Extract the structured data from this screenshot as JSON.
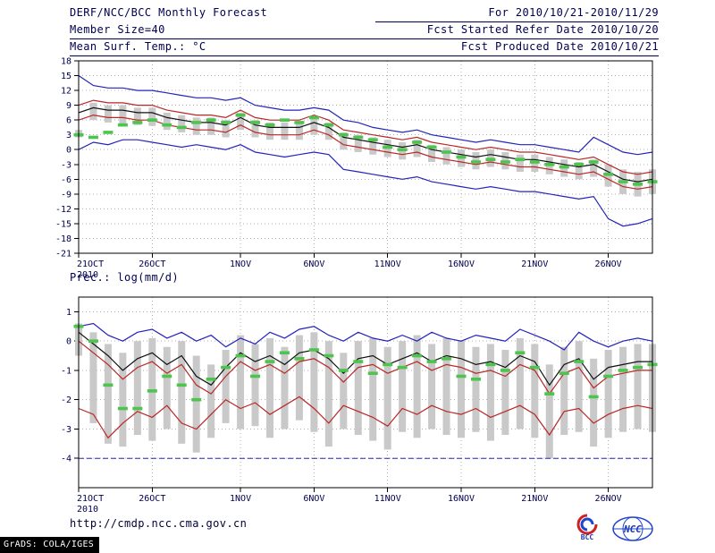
{
  "header": {
    "title": "DERF/NCC/BCC Monthly Forecast",
    "member_size": "Member Size=40",
    "for_range": "For 2010/10/21-2010/11/29",
    "fcst_started": "Fcst Started Refer Date 2010/10/20",
    "fcst_produced": "Fcst Produced Date 2010/10/21"
  },
  "footer": {
    "url": "http://cmdp.ncc.cma.gov.cn",
    "grads_credit": "GrADS: COLA/IGES",
    "logos": [
      {
        "label": "BCC"
      },
      {
        "label": "NCC"
      }
    ]
  },
  "colors": {
    "text": "#000050",
    "grid": "#b0b0b0",
    "frame": "#000000",
    "blue_line": "#2323bb",
    "red_line": "#bb2626",
    "black_line": "#111111",
    "bar_gray": "#c9c9c9",
    "obs_green": "#4dc44d"
  },
  "chart_data": [
    {
      "type": "line",
      "title": "Mean Surf. Temp.: °C",
      "n_days": 40,
      "x_tick_labels": [
        "21OCT",
        "26OCT",
        "1NOV",
        "6NOV",
        "11NOV",
        "16NOV",
        "21NOV",
        "26NOV"
      ],
      "x_tick_day_index": [
        0,
        5,
        11,
        16,
        21,
        26,
        31,
        36
      ],
      "x_year_label": "2010",
      "ylim": [
        -21,
        18
      ],
      "yticks": [
        18,
        15,
        12,
        9,
        6,
        3,
        0,
        -3,
        -6,
        -9,
        -12,
        -15,
        -18,
        -21
      ],
      "grid": "dotted",
      "series": [
        {
          "name": "ensemble-max",
          "color": "#2323bb",
          "values": [
            15,
            13,
            12.5,
            12.5,
            12,
            12,
            11.5,
            11,
            10.5,
            10.5,
            10,
            10.5,
            9,
            8.5,
            8,
            8,
            8.5,
            8,
            6,
            5.5,
            4.5,
            4,
            3.5,
            4,
            3,
            2.5,
            2,
            1.5,
            2,
            1.5,
            1,
            1,
            0.5,
            0,
            -0.5,
            2.5,
            1,
            -0.5,
            -1,
            -0.5
          ]
        },
        {
          "name": "spread-upper",
          "color": "#bb2626",
          "values": [
            9,
            10,
            9.5,
            9.5,
            9,
            9,
            8,
            7.5,
            7,
            7,
            6.5,
            8,
            6.5,
            6,
            6,
            6,
            7,
            6,
            4,
            3.5,
            3,
            2.5,
            2,
            2.5,
            1.5,
            1,
            0.5,
            0,
            0.5,
            0,
            -0.5,
            -0.5,
            -1,
            -1.5,
            -2,
            -1.5,
            -3,
            -4.5,
            -5,
            -4.5
          ]
        },
        {
          "name": "ensemble-mean",
          "color": "#111111",
          "values": [
            7.5,
            8.5,
            8,
            8,
            7.5,
            7.5,
            6.5,
            6,
            5.5,
            5.5,
            5,
            6.5,
            5,
            4.5,
            4.5,
            4.5,
            5.5,
            4.5,
            2.5,
            2,
            1.5,
            1,
            0.5,
            1,
            0,
            -0.5,
            -1,
            -1.5,
            -1,
            -1.5,
            -2,
            -2,
            -2.5,
            -3,
            -3.5,
            -3,
            -4.5,
            -6,
            -6.5,
            -6
          ]
        },
        {
          "name": "spread-lower",
          "color": "#bb2626",
          "values": [
            6,
            7,
            6.5,
            6.5,
            6,
            6,
            5,
            4.5,
            4,
            4,
            3.5,
            5,
            3.5,
            3,
            3,
            3,
            4,
            3,
            1,
            0.5,
            0,
            -0.5,
            -1,
            -0.5,
            -1.5,
            -2,
            -2.5,
            -3,
            -2.5,
            -3,
            -3.5,
            -3.5,
            -4,
            -4.5,
            -5,
            -4.5,
            -6,
            -7.5,
            -8,
            -7.5
          ]
        },
        {
          "name": "ensemble-min",
          "color": "#2323bb",
          "values": [
            0,
            1.5,
            1,
            2,
            2,
            1.5,
            1,
            0.5,
            1,
            0.5,
            0,
            1,
            -0.5,
            -1,
            -1.5,
            -1,
            -0.5,
            -1,
            -4,
            -4.5,
            -5,
            -5.5,
            -6,
            -5.5,
            -6.5,
            -7,
            -7.5,
            -8,
            -7.5,
            -8,
            -8.5,
            -8.5,
            -9,
            -9.5,
            -10,
            -9.5,
            -14,
            -15.5,
            -15,
            -14
          ]
        }
      ],
      "bars": {
        "color": "#c9c9c9",
        "low": [
          2.5,
          6,
          5.5,
          5,
          5,
          4.8,
          4,
          3.5,
          3,
          3,
          2.5,
          4,
          2.5,
          2,
          2,
          2,
          3,
          2,
          0,
          -0.5,
          -1,
          -1.5,
          -2,
          -1.5,
          -2.5,
          -3,
          -3.5,
          -4,
          -3.5,
          -4,
          -4.5,
          -4.5,
          -5,
          -5.5,
          -6,
          -5.5,
          -7.5,
          -9,
          -9.5,
          -9
        ],
        "high": [
          4,
          9.5,
          9,
          9,
          8.5,
          8.5,
          7.5,
          7,
          6.5,
          6.5,
          6,
          7.5,
          6,
          5.5,
          5.5,
          5.5,
          6.5,
          5.5,
          3.5,
          3,
          2.5,
          2,
          1.5,
          2,
          1,
          0.5,
          0,
          -0.5,
          0,
          -0.5,
          -1,
          -1,
          -1.5,
          -2,
          -2.5,
          -2,
          -3,
          -4,
          -4.5,
          -4
        ]
      },
      "obs_dashes": {
        "color": "#4dc44d",
        "values": [
          3,
          2.5,
          3.5,
          5,
          5.5,
          6,
          5,
          4.5,
          5.5,
          6,
          5.5,
          7,
          5.5,
          5,
          6,
          5.5,
          6.5,
          5,
          3,
          2.5,
          2,
          0.5,
          0,
          1.5,
          0.5,
          -0.5,
          -1.5,
          -2.5,
          -2,
          -2.5,
          -2,
          -2.5,
          -3,
          -3.5,
          -3,
          -2.5,
          -5,
          -6.5,
          -7,
          -6.5
        ]
      }
    },
    {
      "type": "line",
      "title": "Prec.: log(mm/d)",
      "n_days": 40,
      "x_tick_labels": [
        "21OCT",
        "26OCT",
        "1NOV",
        "6NOV",
        "11NOV",
        "16NOV",
        "21NOV",
        "26NOV"
      ],
      "x_tick_day_index": [
        0,
        5,
        11,
        16,
        21,
        26,
        31,
        36
      ],
      "x_year_label": "2010",
      "ylim": [
        -5,
        1.5
      ],
      "yticks": [
        1,
        0,
        -1,
        -2,
        -3,
        -4
      ],
      "grid": "dotted",
      "reference_line": {
        "value": -4,
        "color": "#2323bb",
        "style": "dashed"
      },
      "series": [
        {
          "name": "ensemble-max",
          "color": "#2323bb",
          "values": [
            0.5,
            0.6,
            0.2,
            0,
            0.3,
            0.4,
            0.1,
            0.3,
            0,
            0.2,
            -0.2,
            0.1,
            -0.1,
            0.3,
            0.1,
            0.4,
            0.5,
            0.2,
            0,
            0.3,
            0.1,
            0,
            0.2,
            0,
            0.3,
            0.1,
            0,
            0.2,
            0.1,
            0,
            0.4,
            0.2,
            0,
            -0.3,
            0.3,
            0,
            -0.2,
            0,
            0.1,
            0
          ]
        },
        {
          "name": "ensemble-mean",
          "color": "#111111",
          "values": [
            0.3,
            -0.1,
            -0.5,
            -1,
            -0.6,
            -0.4,
            -0.8,
            -0.5,
            -1.2,
            -1.5,
            -0.9,
            -0.4,
            -0.7,
            -0.5,
            -0.8,
            -0.4,
            -0.3,
            -0.6,
            -1.1,
            -0.6,
            -0.5,
            -0.8,
            -0.6,
            -0.4,
            -0.7,
            -0.5,
            -0.6,
            -0.8,
            -0.7,
            -0.9,
            -0.5,
            -0.7,
            -1.5,
            -0.8,
            -0.6,
            -1.3,
            -0.9,
            -0.8,
            -0.7,
            -0.7
          ]
        },
        {
          "name": "spread-upper",
          "color": "#bb2626",
          "values": [
            0,
            -0.4,
            -0.8,
            -1.3,
            -0.9,
            -0.7,
            -1.1,
            -0.8,
            -1.5,
            -1.8,
            -1.2,
            -0.7,
            -1,
            -0.8,
            -1.1,
            -0.7,
            -0.6,
            -0.9,
            -1.4,
            -0.9,
            -0.8,
            -1.1,
            -0.9,
            -0.7,
            -1,
            -0.8,
            -0.9,
            -1.1,
            -1,
            -1.2,
            -0.8,
            -1,
            -1.8,
            -1.1,
            -0.9,
            -1.6,
            -1.2,
            -1.1,
            -1,
            -1
          ]
        },
        {
          "name": "spread-lower",
          "color": "#bb2626",
          "values": [
            -2.3,
            -2.5,
            -3.3,
            -2.8,
            -2.4,
            -2.6,
            -2.2,
            -2.8,
            -3,
            -2.5,
            -2,
            -2.3,
            -2.1,
            -2.5,
            -2.2,
            -1.9,
            -2.3,
            -2.8,
            -2.2,
            -2.4,
            -2.6,
            -2.9,
            -2.3,
            -2.5,
            -2.2,
            -2.4,
            -2.5,
            -2.3,
            -2.6,
            -2.4,
            -2.2,
            -2.5,
            -3.2,
            -2.4,
            -2.3,
            -2.8,
            -2.5,
            -2.3,
            -2.2,
            -2.3
          ]
        }
      ],
      "bars": {
        "color": "#c9c9c9",
        "low": [
          -0.5,
          -2.8,
          -3.5,
          -3.6,
          -3.2,
          -3.4,
          -3,
          -3.5,
          -3.8,
          -3.3,
          -2.8,
          -3,
          -2.9,
          -3.3,
          -3,
          -2.7,
          -3.1,
          -3.6,
          -3,
          -3.2,
          -3.4,
          -3.7,
          -3.1,
          -3.3,
          -3,
          -3.2,
          -3.3,
          -3.1,
          -3.4,
          -3.2,
          -3,
          -3.3,
          -4,
          -3.2,
          -3.1,
          -3.6,
          -3.3,
          -3.1,
          -3,
          -3.1
        ],
        "high": [
          0.6,
          0.3,
          -0.1,
          -0.4,
          0,
          0.1,
          -0.2,
          0,
          -0.5,
          -0.8,
          -0.3,
          0.2,
          -0.1,
          0.1,
          -0.2,
          0.2,
          0.3,
          0,
          -0.4,
          0,
          0.1,
          -0.2,
          0,
          0.2,
          -0.1,
          0.1,
          0,
          -0.2,
          -0.1,
          -0.3,
          0.1,
          -0.1,
          -0.8,
          -0.2,
          0,
          -0.6,
          -0.3,
          -0.2,
          -0.1,
          -0.1
        ]
      },
      "obs_dashes": {
        "color": "#4dc44d",
        "values": [
          0.5,
          0,
          -1.5,
          -2.3,
          -2.3,
          -1.7,
          -1.2,
          -1.5,
          -2,
          -1.3,
          -0.9,
          -0.5,
          -1.2,
          -0.7,
          -0.4,
          -0.6,
          -0.3,
          -0.5,
          -1,
          -0.7,
          -1.1,
          -0.8,
          -0.9,
          -0.5,
          -0.7,
          -0.6,
          -1.2,
          -1.3,
          -0.8,
          -1,
          -0.4,
          -0.9,
          -1.8,
          -1.1,
          -0.7,
          -1.9,
          -1.2,
          -1,
          -0.9,
          -0.8
        ]
      }
    }
  ]
}
